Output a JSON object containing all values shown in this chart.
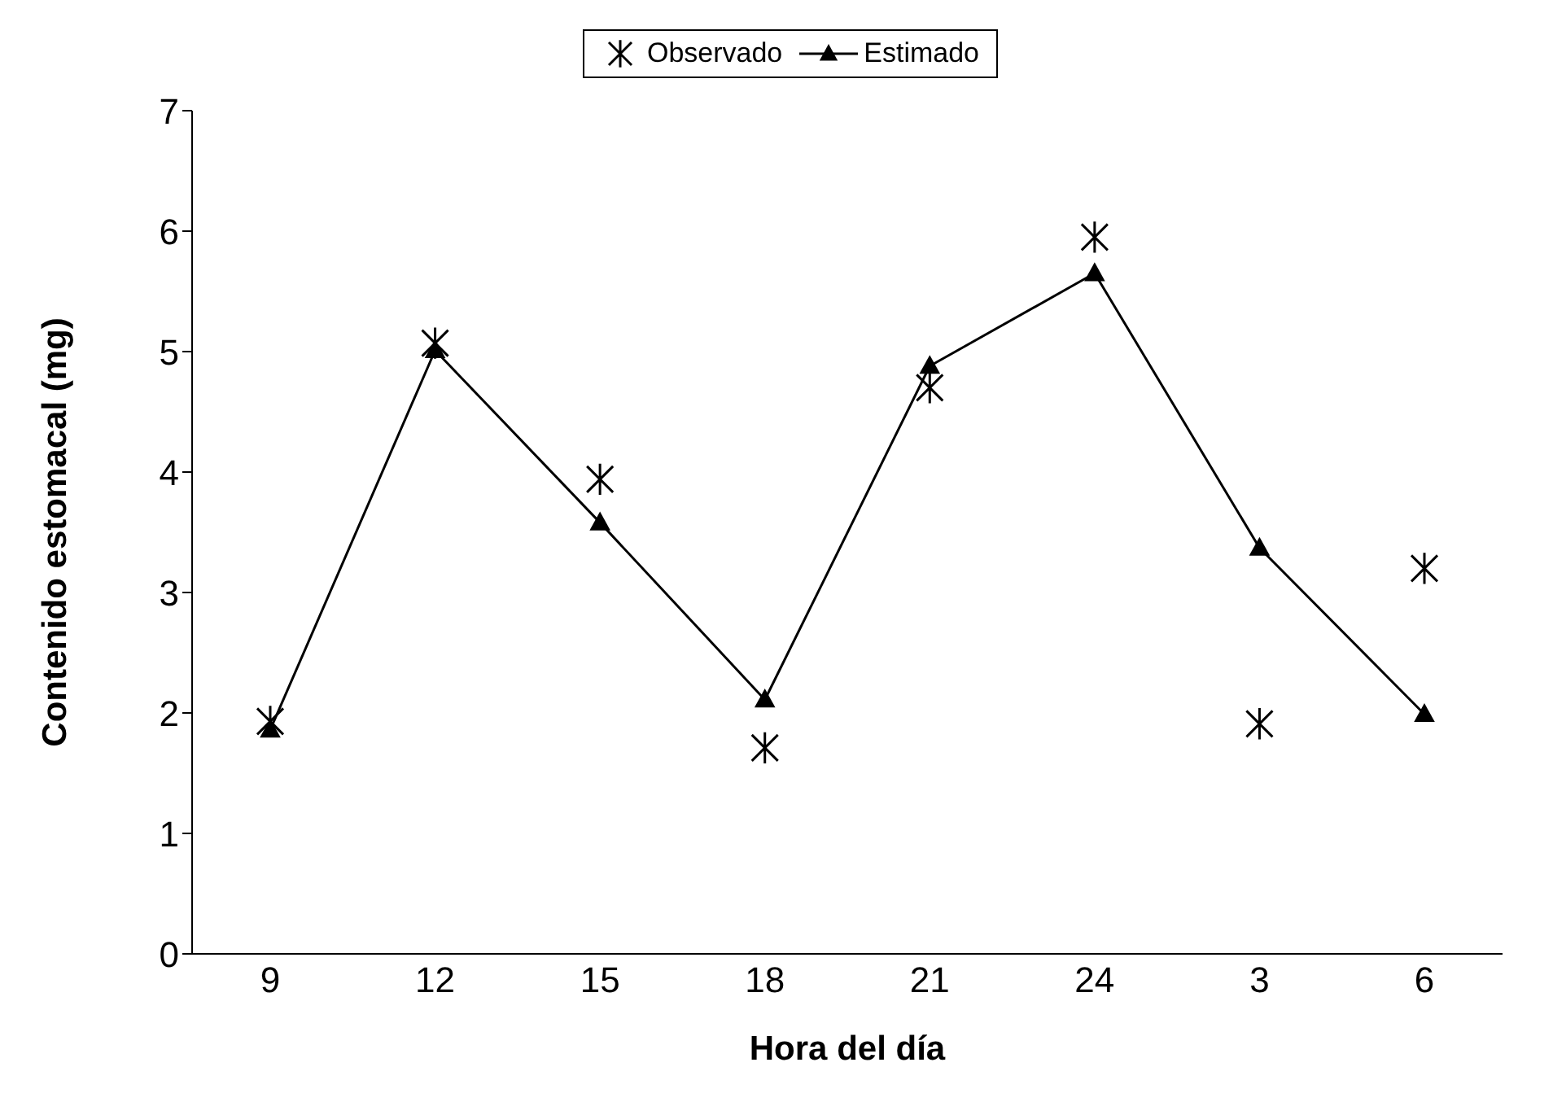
{
  "chart_data": {
    "type": "line",
    "xlabel": "Hora del día",
    "ylabel": "Contenido estomacal (mg)",
    "categories": [
      "9",
      "12",
      "15",
      "18",
      "21",
      "24",
      "3",
      "6"
    ],
    "series": [
      {
        "name": "Observado",
        "type": "scatter",
        "marker": "cross",
        "color": "#000000",
        "values": [
          1.93,
          5.07,
          3.94,
          1.71,
          4.7,
          5.95,
          1.91,
          3.2
        ]
      },
      {
        "name": "Estimado",
        "marker": "triangle",
        "color": "#000000",
        "values": [
          1.86,
          5.01,
          3.58,
          2.11,
          4.88,
          5.65,
          3.37,
          1.99
        ]
      }
    ],
    "ylim": [
      0,
      7
    ],
    "yticks": [
      0,
      1,
      2,
      3,
      4,
      5,
      6,
      7
    ],
    "grid": false,
    "legend": "top"
  }
}
